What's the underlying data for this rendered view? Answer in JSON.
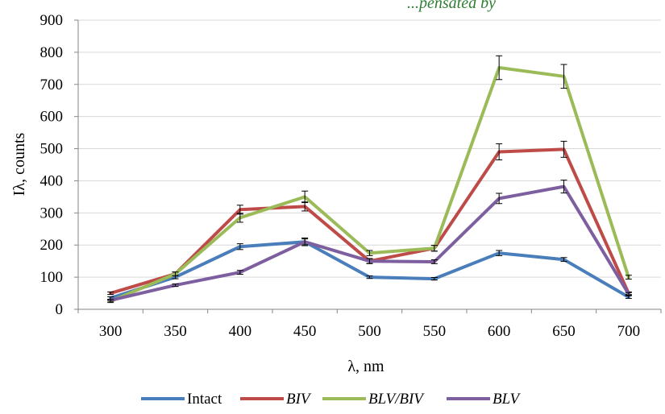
{
  "chart_data": {
    "type": "line",
    "top_clipped_text": "...pensated by",
    "xlabel": "λ, nm",
    "ylabel": "Iλ, counts",
    "x": [
      300,
      350,
      400,
      450,
      500,
      550,
      600,
      650,
      700
    ],
    "x_tick_labels": [
      "300",
      "350",
      "400",
      "450",
      "500",
      "550",
      "600",
      "650",
      "700"
    ],
    "ylim": [
      0,
      900
    ],
    "y_ticks": [
      0,
      100,
      200,
      300,
      400,
      500,
      600,
      700,
      800,
      900
    ],
    "y_tick_labels": [
      "0",
      "100",
      "200",
      "300",
      "400",
      "500",
      "600",
      "700",
      "800",
      "900"
    ],
    "grid": "horizontal",
    "legend_position": "bottom",
    "error_bars": true,
    "series": [
      {
        "name": "Intact",
        "italic": false,
        "color": "#4a7ebb",
        "values": [
          35,
          100,
          195,
          210,
          100,
          95,
          175,
          155,
          38
        ],
        "errors": [
          4,
          5,
          9,
          9,
          4,
          4,
          8,
          6,
          4
        ]
      },
      {
        "name": "BIV",
        "italic": true,
        "color": "#be4b48",
        "values": [
          50,
          110,
          310,
          320,
          150,
          190,
          490,
          498,
          50
        ],
        "errors": [
          4,
          6,
          14,
          14,
          7,
          9,
          25,
          25,
          4
        ]
      },
      {
        "name": "BLV/BIV",
        "italic": true,
        "color": "#9bbb59",
        "values": [
          25,
          110,
          285,
          350,
          175,
          190,
          752,
          725,
          100
        ],
        "errors": [
          4,
          6,
          14,
          18,
          8,
          9,
          37,
          37,
          6
        ]
      },
      {
        "name": "BLV",
        "italic": true,
        "color": "#7d5fa0",
        "values": [
          28,
          75,
          115,
          210,
          150,
          148,
          345,
          382,
          48
        ],
        "errors": [
          3,
          4,
          6,
          12,
          8,
          6,
          16,
          20,
          4
        ]
      }
    ]
  }
}
